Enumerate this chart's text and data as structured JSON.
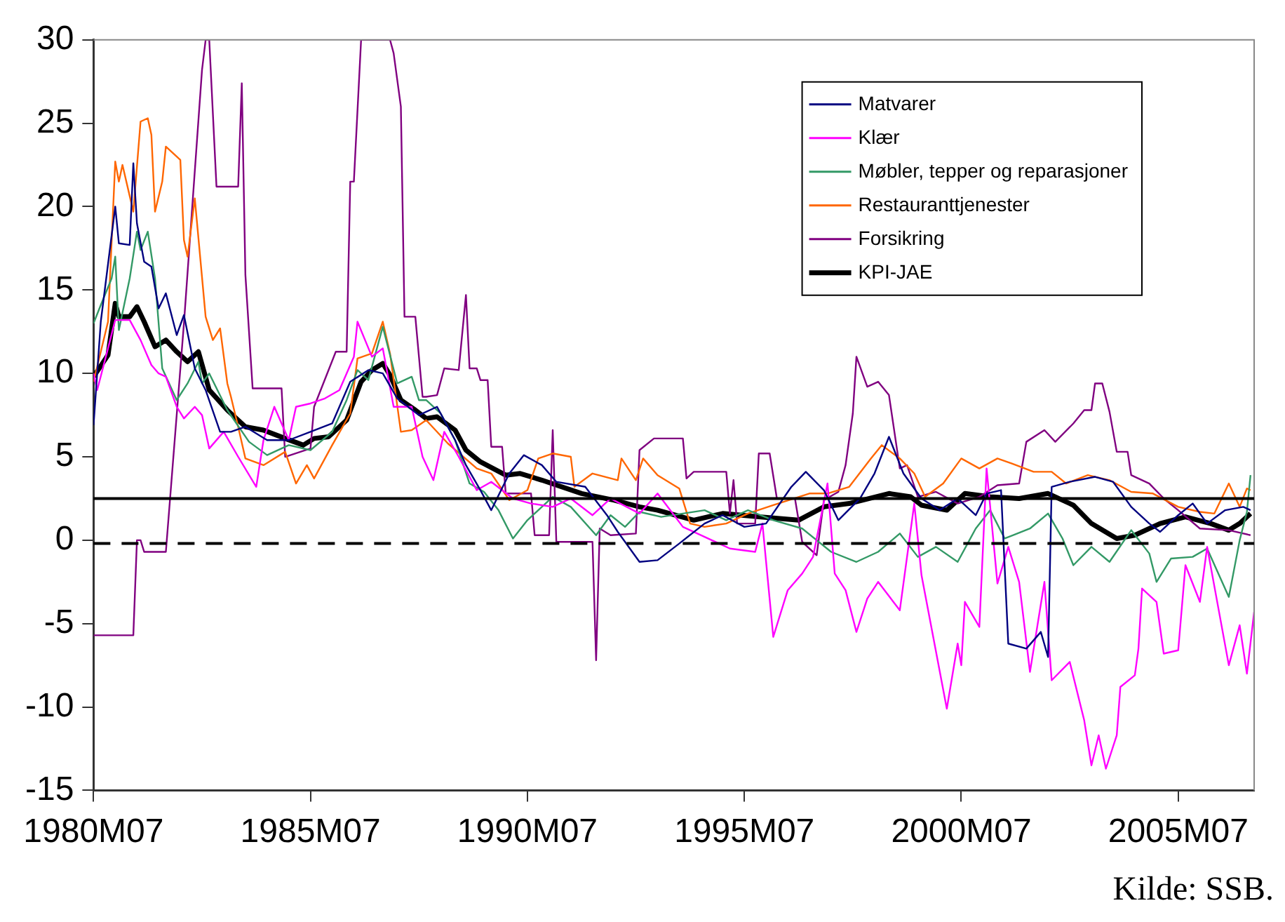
{
  "chart_data": {
    "type": "line",
    "xlim": [
      "1980-07",
      "2007-04"
    ],
    "xticks": [
      {
        "value": "1980-07",
        "label": "1980M07"
      },
      {
        "value": "1985-07",
        "label": "1985M07"
      },
      {
        "value": "1990-07",
        "label": "1990M07"
      },
      {
        "value": "1995-07",
        "label": "1995M07"
      },
      {
        "value": "2000-07",
        "label": "2000M07"
      },
      {
        "value": "2005-07",
        "label": "2005M07"
      }
    ],
    "ylim": [
      -15,
      30
    ],
    "yticks": [
      -15,
      -10,
      -5,
      0,
      5,
      10,
      15,
      20,
      25,
      30
    ],
    "grid": false,
    "legend": "top right",
    "marker": "none",
    "line_style": "solid",
    "ref_lines": [
      {
        "axis": "y",
        "value": 2.5,
        "color": "#000000",
        "line_style": "solid"
      },
      {
        "axis": "y",
        "value": -0.2,
        "color": "#000000",
        "line_style": "dashed"
      }
    ],
    "annotations": [
      "Kilde: SSB."
    ],
    "series": [
      {
        "name": "Matvarer",
        "color": "#000080",
        "x": [
          "1980-07",
          "1980-09",
          "1981-01",
          "1981-02",
          "1981-05",
          "1981-06",
          "1981-07",
          "1981-09",
          "1981-11",
          "1982-01",
          "1982-03",
          "1982-06",
          "1982-08",
          "1982-11",
          "1983-02",
          "1983-06",
          "1983-09",
          "1984-01",
          "1984-07",
          "1985-01",
          "1985-07",
          "1986-01",
          "1986-06",
          "1986-11",
          "1987-03",
          "1987-07",
          "1988-01",
          "1988-06",
          "1988-11",
          "1989-02",
          "1989-06",
          "1989-09",
          "1990-02",
          "1990-06",
          "1990-11",
          "1991-03",
          "1991-11",
          "1992-05",
          "1992-08",
          "1993-02",
          "1993-07",
          "1994-01",
          "1994-08",
          "1995-01",
          "1995-07",
          "1996-01",
          "1996-08",
          "1996-12",
          "1997-05",
          "1997-09",
          "1998-03",
          "1998-07",
          "1998-11",
          "1999-03",
          "1999-08",
          "2000-01",
          "2000-06",
          "2000-11",
          "2001-02",
          "2001-06",
          "2001-08",
          "2002-01",
          "2002-05",
          "2002-07",
          "2002-08",
          "2003-01",
          "2003-08",
          "2004-01",
          "2004-06",
          "2004-11",
          "2005-02",
          "2005-07",
          "2005-11",
          "2006-03",
          "2006-08",
          "2007-01",
          "2007-03"
        ],
        "values": [
          6.9,
          13.1,
          20.0,
          17.8,
          17.7,
          22.6,
          19.0,
          16.7,
          16.4,
          13.9,
          14.8,
          12.3,
          13.5,
          10.3,
          9.0,
          6.5,
          6.5,
          6.8,
          6.0,
          6.0,
          6.5,
          7.0,
          9.5,
          10.2,
          10.0,
          8.5,
          7.5,
          8.0,
          6.0,
          4.5,
          3.0,
          1.8,
          4.0,
          5.1,
          4.5,
          3.5,
          3.2,
          1.5,
          0.5,
          -1.3,
          -1.2,
          -0.2,
          1.0,
          1.5,
          0.8,
          1.0,
          3.2,
          4.1,
          3.0,
          1.2,
          2.5,
          4.0,
          6.2,
          4.0,
          2.5,
          1.8,
          2.5,
          1.5,
          2.8,
          3.0,
          -6.2,
          -6.5,
          -5.5,
          -7.0,
          3.2,
          3.5,
          3.8,
          3.5,
          2.0,
          1.0,
          0.5,
          1.5,
          2.2,
          1.0,
          1.8,
          2.0,
          1.8
        ]
      },
      {
        "name": "Klær",
        "color": "#ff00ff",
        "x": [
          "1980-07",
          "1980-08",
          "1980-11",
          "1981-01",
          "1981-05",
          "1981-08",
          "1981-11",
          "1982-01",
          "1982-03",
          "1982-06",
          "1982-08",
          "1982-11",
          "1983-01",
          "1983-03",
          "1983-07",
          "1983-11",
          "1984-04",
          "1984-06",
          "1984-09",
          "1985-01",
          "1985-03",
          "1985-07",
          "1985-11",
          "1986-03",
          "1986-07",
          "1986-08",
          "1986-12",
          "1987-03",
          "1987-06",
          "1987-11",
          "1988-02",
          "1988-05",
          "1988-08",
          "1988-12",
          "1989-05",
          "1989-09",
          "1990-03",
          "1990-08",
          "1991-02",
          "1991-07",
          "1992-01",
          "1992-06",
          "1993-02",
          "1993-07",
          "1994-02",
          "1994-08",
          "1995-03",
          "1995-10",
          "1995-12",
          "1996-03",
          "1996-07",
          "1996-11",
          "1997-02",
          "1997-06",
          "1997-08",
          "1997-11",
          "1998-02",
          "1998-05",
          "1998-08",
          "1999-02",
          "1999-06",
          "1999-08",
          "2000-03",
          "2000-06",
          "2000-07",
          "2000-08",
          "2000-12",
          "2001-02",
          "2001-05",
          "2001-08",
          "2001-11",
          "2002-02",
          "2002-06",
          "2002-08",
          "2003-01",
          "2003-05",
          "2003-07",
          "2003-09",
          "2003-11",
          "2004-02",
          "2004-03",
          "2004-07",
          "2004-08",
          "2004-09",
          "2005-01",
          "2005-03",
          "2005-07",
          "2005-09",
          "2006-01",
          "2006-03",
          "2006-09",
          "2006-12",
          "2007-02",
          "2007-04"
        ],
        "values": [
          10,
          9,
          11.5,
          13.2,
          13.2,
          12,
          10.5,
          10,
          9.8,
          8,
          7.3,
          8,
          7.5,
          5.5,
          6.5,
          5.0,
          3.2,
          6,
          8,
          6,
          8,
          8.2,
          8.5,
          9,
          11,
          13.1,
          11,
          11.5,
          8,
          8,
          5,
          3.6,
          6.5,
          5,
          3,
          3.5,
          2.5,
          2.2,
          2.0,
          2.5,
          1.5,
          2.5,
          1.6,
          2.8,
          0.8,
          0.2,
          -0.5,
          -0.7,
          1.0,
          -5.8,
          -3,
          -2,
          -1,
          3.4,
          -2,
          -3,
          -5.5,
          -3.5,
          -2.5,
          -4.2,
          2.2,
          -2.1,
          -10.1,
          -6.2,
          -7.5,
          -3.7,
          -5.2,
          4.3,
          -2.6,
          -0.4,
          -2.5,
          -7.9,
          -2.5,
          -8.4,
          -7.3,
          -10.8,
          -13.5,
          -11.7,
          -13.7,
          -11.7,
          -8.8,
          -8.1,
          -6.5,
          -2.9,
          -3.7,
          -6.8,
          -6.6,
          -1.5,
          -3.7,
          -0.4,
          -7.5,
          -5.1,
          -8.0,
          -4.3
        ]
      },
      {
        "name": "Møbler, tepper og reparasjoner",
        "color": "#339966",
        "x": [
          "1980-07",
          "1980-09",
          "1980-12",
          "1981-01",
          "1981-02",
          "1981-05",
          "1981-07",
          "1981-08",
          "1981-10",
          "1981-12",
          "1982-02",
          "1982-06",
          "1982-09",
          "1982-12",
          "1983-01",
          "1983-03",
          "1983-08",
          "1984-02",
          "1984-07",
          "1985-01",
          "1985-07",
          "1986-01",
          "1986-05",
          "1986-08",
          "1986-11",
          "1987-03",
          "1987-07",
          "1987-11",
          "1988-01",
          "1988-03",
          "1988-07",
          "1988-11",
          "1989-03",
          "1989-07",
          "1989-11",
          "1990-03",
          "1990-07",
          "1991-02",
          "1991-07",
          "1992-02",
          "1992-06",
          "1992-10",
          "1993-02",
          "1993-08",
          "1994-02",
          "1994-08",
          "1995-02",
          "1995-08",
          "1996-03",
          "1996-11",
          "1997-07",
          "1998-02",
          "1998-08",
          "1999-02",
          "1999-07",
          "1999-12",
          "2000-06",
          "2000-11",
          "2001-03",
          "2001-07",
          "2002-02",
          "2002-07",
          "2002-11",
          "2003-02",
          "2003-07",
          "2003-12",
          "2004-06",
          "2004-11",
          "2005-01",
          "2005-05",
          "2005-11",
          "2006-03",
          "2006-09",
          "2006-12",
          "2007-02",
          "2007-03"
        ],
        "values": [
          13,
          14.1,
          15.7,
          17.0,
          12.6,
          15.7,
          18.5,
          17.4,
          18.5,
          15.7,
          10.3,
          8.4,
          9.4,
          10.7,
          9.4,
          10.0,
          7.8,
          5.9,
          5.1,
          5.7,
          5.4,
          6.5,
          8.4,
          10.2,
          9.6,
          12.8,
          9.4,
          9.8,
          8.4,
          8.4,
          7.6,
          6.0,
          3.4,
          2.9,
          1.8,
          0.1,
          1.2,
          2.6,
          2.0,
          0.3,
          1.5,
          0.8,
          1.7,
          1.4,
          1.6,
          1.8,
          1.2,
          1.8,
          1.2,
          0.7,
          -0.7,
          -1.3,
          -0.7,
          0.4,
          -1.0,
          -0.4,
          -1.3,
          0.7,
          1.8,
          0.1,
          0.7,
          1.6,
          0.1,
          -1.5,
          -0.4,
          -1.3,
          0.6,
          -0.8,
          -2.5,
          -1.1,
          -1.0,
          -0.5,
          -3.4,
          0,
          1.7,
          3.9
        ]
      },
      {
        "name": "Restauranttjenester",
        "color": "#ff6600",
        "x": [
          "1980-07",
          "1980-11",
          "1981-01",
          "1981-02",
          "1981-03",
          "1981-06",
          "1981-08",
          "1981-10",
          "1981-11",
          "1981-12",
          "1982-02",
          "1982-03",
          "1982-07",
          "1982-08",
          "1982-09",
          "1982-11",
          "1983-02",
          "1983-04",
          "1983-06",
          "1983-08",
          "1983-09",
          "1983-11",
          "1984-01",
          "1984-06",
          "1984-12",
          "1985-03",
          "1985-06",
          "1985-08",
          "1986-01",
          "1986-06",
          "1986-08",
          "1986-12",
          "1987-03",
          "1987-05",
          "1987-08",
          "1987-11",
          "1988-03",
          "1988-09",
          "1989-05",
          "1989-09",
          "1990-02",
          "1990-07",
          "1990-10",
          "1991-02",
          "1991-07",
          "1991-08",
          "1992-01",
          "1992-08",
          "1992-09",
          "1993-01",
          "1993-03",
          "1993-07",
          "1994-01",
          "1994-04",
          "1994-08",
          "1995-02",
          "1995-08",
          "1996-03",
          "1997-01",
          "1997-06",
          "1997-12",
          "1998-06",
          "1998-09",
          "1999-02",
          "1999-06",
          "1999-09",
          "2000-02",
          "2000-07",
          "2000-12",
          "2001-05",
          "2001-09",
          "2002-03",
          "2002-08",
          "2002-12",
          "2003-06",
          "2003-12",
          "2004-06",
          "2004-12",
          "2005-07",
          "2006-01",
          "2006-05",
          "2006-09",
          "2006-12",
          "2007-02",
          "2007-03"
        ],
        "values": [
          9.5,
          13.1,
          22.7,
          21.5,
          22.5,
          19.7,
          25.1,
          25.3,
          24.3,
          19.7,
          21.5,
          23.6,
          22.8,
          18.0,
          17.0,
          20.5,
          13.4,
          12.0,
          12.7,
          9.4,
          8.6,
          6.8,
          4.9,
          4.5,
          5.3,
          3.4,
          4.5,
          3.7,
          5.7,
          7.6,
          10.9,
          11.2,
          13.1,
          11.2,
          6.5,
          6.6,
          7.2,
          5.8,
          4.3,
          4.0,
          2.4,
          3.0,
          4.9,
          5.2,
          5.0,
          3.2,
          4.0,
          3.6,
          4.9,
          3.6,
          4.9,
          3.9,
          3.1,
          1.0,
          0.8,
          1.0,
          1.6,
          2.1,
          2.8,
          2.8,
          3.2,
          4.9,
          5.7,
          4.9,
          4.0,
          2.6,
          3.4,
          4.9,
          4.3,
          4.9,
          4.6,
          4.1,
          4.1,
          3.4,
          3.9,
          3.6,
          2.9,
          2.8,
          2.0,
          1.7,
          1.6,
          3.4,
          2.0,
          3.1,
          3.0
        ]
      },
      {
        "name": "Forsikring",
        "color": "#800080",
        "x": [
          "1980-07",
          "1981-06",
          "1981-07",
          "1981-08",
          "1981-09",
          "1982-03",
          "1982-08",
          "1983-01",
          "1983-02",
          "1983-03",
          "1983-05",
          "1983-11",
          "1983-12",
          "1984-01",
          "1984-03",
          "1984-11",
          "1984-12",
          "1985-07",
          "1985-08",
          "1986-02",
          "1986-05",
          "1986-06",
          "1986-07",
          "1986-09",
          "1987-05",
          "1987-06",
          "1987-08",
          "1987-09",
          "1987-12",
          "1988-02",
          "1988-03",
          "1988-06",
          "1988-08",
          "1988-12",
          "1989-02",
          "1989-03",
          "1989-05",
          "1989-06",
          "1989-08",
          "1989-09",
          "1989-12",
          "1990-01",
          "1990-08",
          "1990-09",
          "1991-01",
          "1991-02",
          "1991-03",
          "1992-01",
          "1992-02",
          "1992-03",
          "1992-06",
          "1993-01",
          "1993-02",
          "1993-06",
          "1994-02",
          "1994-03",
          "1994-05",
          "1995-02",
          "1995-03",
          "1995-04",
          "1995-05",
          "1995-10",
          "1995-11",
          "1996-02",
          "1996-04",
          "1996-09",
          "1996-11",
          "1997-03",
          "1997-05",
          "1997-09",
          "1997-11",
          "1998-01",
          "1998-02",
          "1998-05",
          "1998-08",
          "1998-11",
          "1999-02",
          "1999-04",
          "1999-07",
          "1999-12",
          "2000-06",
          "2000-12",
          "2001-05",
          "2001-11",
          "2002-01",
          "2002-06",
          "2002-09",
          "2003-02",
          "2003-05",
          "2003-07",
          "2003-08",
          "2003-10",
          "2003-12",
          "2004-02",
          "2004-05",
          "2004-06",
          "2004-11",
          "2005-03",
          "2005-07",
          "2006-01",
          "2006-09",
          "2007-03"
        ],
        "values": [
          -5.7,
          -5.7,
          0,
          0,
          -0.7,
          -0.7,
          13,
          28.2,
          30,
          30,
          21.2,
          21.2,
          27.4,
          15.9,
          9.1,
          9.1,
          5.0,
          5.5,
          8.0,
          11.3,
          11.3,
          21.5,
          21.5,
          30,
          30,
          29.2,
          26,
          13.4,
          13.4,
          8.6,
          8.6,
          8.7,
          10.3,
          10.2,
          14.7,
          10.3,
          10.3,
          9.6,
          9.6,
          5.6,
          5.6,
          2.8,
          2.8,
          0.3,
          0.3,
          6.6,
          -0.1,
          -0.1,
          -7.2,
          0.7,
          0.3,
          0.4,
          5.4,
          6.1,
          6.1,
          3.7,
          4.1,
          4.1,
          1.6,
          3.6,
          1.0,
          1.0,
          5.2,
          5.2,
          2.5,
          2.5,
          -0.1,
          -0.9,
          2.4,
          2.9,
          4.5,
          7.6,
          11.0,
          9.2,
          9.5,
          8.7,
          4.3,
          4.5,
          2.6,
          2.9,
          2.2,
          2.6,
          3.3,
          3.4,
          5.9,
          6.6,
          5.9,
          7.0,
          7.8,
          7.8,
          9.4,
          9.4,
          7.7,
          5.3,
          5.3,
          3.9,
          3.4,
          2.5,
          1.8,
          0.7,
          0.6,
          0.3
        ]
      },
      {
        "name": "KPI-JAE",
        "color": "#000000",
        "x": [
          "1980-07",
          "1980-11",
          "1981-01",
          "1981-02",
          "1981-05",
          "1981-07",
          "1981-09",
          "1981-12",
          "1982-03",
          "1982-06",
          "1982-09",
          "1982-12",
          "1983-03",
          "1983-08",
          "1984-01",
          "1984-06",
          "1984-12",
          "1985-05",
          "1985-08",
          "1985-12",
          "1986-05",
          "1986-09",
          "1986-12",
          "1987-03",
          "1987-05",
          "1987-08",
          "1987-12",
          "1988-03",
          "1988-06",
          "1988-11",
          "1989-02",
          "1989-06",
          "1990-01",
          "1990-05",
          "1990-11",
          "1991-10",
          "1992-07",
          "1993-02",
          "1993-07",
          "1994-05",
          "1995-01",
          "1995-11",
          "1996-10",
          "1997-05",
          "1997-12",
          "1998-11",
          "1999-05",
          "1999-08",
          "2000-03",
          "2000-08",
          "2001-03",
          "2001-11",
          "2002-07",
          "2003-02",
          "2003-07",
          "2004-02",
          "2004-07",
          "2005-02",
          "2005-09",
          "2006-04",
          "2006-09",
          "2006-12",
          "2007-03"
        ],
        "values": [
          9.8,
          11.1,
          14.2,
          13.4,
          13.4,
          14.0,
          13.1,
          11.6,
          12.0,
          11.3,
          10.7,
          11.3,
          9.0,
          7.8,
          6.8,
          6.6,
          6.1,
          5.7,
          6.1,
          6.2,
          7.2,
          9.5,
          10.2,
          10.6,
          9.9,
          8.4,
          7.8,
          7.3,
          7.4,
          6.6,
          5.4,
          4.7,
          3.9,
          4.0,
          3.6,
          2.8,
          2.4,
          2.0,
          1.8,
          1.2,
          1.6,
          1.4,
          1.2,
          2.0,
          2.2,
          2.8,
          2.6,
          2.1,
          1.8,
          2.8,
          2.6,
          2.5,
          2.8,
          2.1,
          1.0,
          0.1,
          0.3,
          1.0,
          1.4,
          1.0,
          0.6,
          1.0,
          1.6
        ]
      }
    ]
  }
}
